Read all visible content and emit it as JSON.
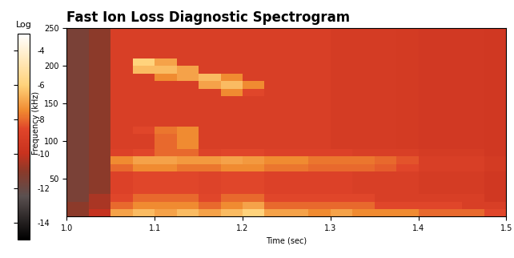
{
  "chart_data": {
    "type": "heatmap",
    "title": "Fast Ion Loss Diagnostic Spectrogram",
    "x_label": "Time (sec)",
    "y_label": "Frequency (kHz)",
    "xlim": [
      1.0,
      1.5
    ],
    "ylim": [
      0,
      250
    ],
    "xticks": [
      1.0,
      1.1,
      1.2,
      1.3,
      1.4,
      1.5
    ],
    "yticks": [
      50,
      100,
      150,
      200,
      250
    ],
    "cells": [
      [
        -11,
        -10,
        -7,
        -6.5,
        -7,
        -6.5,
        -7,
        -6.5,
        -6,
        -7,
        -7,
        -7.5,
        -7,
        -7.5,
        -7.5,
        -7.5,
        -8,
        -8,
        -8,
        -8.5
      ],
      [
        -11,
        -10.5,
        -8,
        -7.5,
        -7.5,
        -7.5,
        -8,
        -7.5,
        -7,
        -8,
        -8,
        -8,
        -8,
        -8,
        -8.5,
        -8.5,
        -8.5,
        -8.5,
        -9,
        -9
      ],
      [
        -11.5,
        -10.5,
        -8.5,
        -8,
        -8,
        -8,
        -8.5,
        -8,
        -8,
        -8.5,
        -8.5,
        -8.5,
        -8.5,
        -8.5,
        -9,
        -9,
        -9,
        -9,
        -9,
        -9.5
      ],
      [
        -11.5,
        -11,
        -8.8,
        -8.5,
        -8.5,
        -8.5,
        -8.7,
        -8.5,
        -8.5,
        -8.8,
        -8.8,
        -8.8,
        -8.8,
        -9,
        -9,
        -9,
        -9.2,
        -9.2,
        -9.2,
        -9.5
      ],
      [
        -11.5,
        -11,
        -8.8,
        -8.5,
        -8.5,
        -8.5,
        -8.7,
        -8.5,
        -8.5,
        -8.8,
        -8.8,
        -8.8,
        -8.8,
        -9,
        -9,
        -9,
        -9.2,
        -9.2,
        -9.2,
        -9.5
      ],
      [
        -11.5,
        -11,
        -8.8,
        -8.5,
        -8.5,
        -8.5,
        -8.7,
        -8.5,
        -8.5,
        -8.8,
        -8.8,
        -8.8,
        -8.8,
        -9,
        -9,
        -9,
        -9.2,
        -9.2,
        -9.2,
        -9.5
      ],
      [
        -11.5,
        -11,
        -8,
        -7.5,
        -7.5,
        -7.8,
        -7.8,
        -7.5,
        -7.5,
        -7.8,
        -7.8,
        -8,
        -8,
        -8,
        -8.2,
        -8.5,
        -9,
        -9,
        -9,
        -9.3
      ],
      [
        -11.5,
        -11,
        -7.5,
        -7,
        -7,
        -7.2,
        -7.2,
        -7,
        -7.2,
        -7.5,
        -7.5,
        -7.8,
        -7.8,
        -7.8,
        -8,
        -8.3,
        -9,
        -9,
        -9,
        -9.3
      ],
      [
        -11.5,
        -11,
        -8.8,
        -8.5,
        -8,
        -8,
        -8.7,
        -8.5,
        -8.5,
        -8.8,
        -8.8,
        -8.8,
        -8.8,
        -9,
        -9,
        -9,
        -9.2,
        -9.2,
        -9.2,
        -9.5
      ],
      [
        -11.5,
        -11,
        -9,
        -9,
        -8,
        -7.5,
        -9,
        -9,
        -9,
        -9,
        -9,
        -9,
        -9.2,
        -9.2,
        -9.2,
        -9.3,
        -9.4,
        -9.4,
        -9.4,
        -9.5
      ],
      [
        -11.5,
        -11,
        -9,
        -9,
        -8,
        -7.5,
        -9,
        -9,
        -9,
        -9,
        -9,
        -9,
        -9.2,
        -9.2,
        -9.2,
        -9.3,
        -9.4,
        -9.4,
        -9.4,
        -9.5
      ],
      [
        -11.5,
        -11,
        -9,
        -8.5,
        -7.8,
        -7.5,
        -9,
        -9,
        -9,
        -9,
        -9,
        -9,
        -9.2,
        -9.2,
        -9.2,
        -9.3,
        -9.4,
        -9.4,
        -9.4,
        -9.5
      ],
      [
        -11.5,
        -11,
        -9,
        -9,
        -9,
        -9,
        -9,
        -9,
        -9,
        -9,
        -9,
        -9,
        -9.2,
        -9.2,
        -9.2,
        -9.3,
        -9.4,
        -9.4,
        -9.4,
        -9.5
      ],
      [
        -11.5,
        -11,
        -9,
        -9,
        -9,
        -9,
        -9,
        -9,
        -9,
        -9,
        -9,
        -9,
        -9.2,
        -9.2,
        -9.2,
        -9.3,
        -9.4,
        -9.4,
        -9.4,
        -9.5
      ],
      [
        -11.5,
        -11,
        -9,
        -9,
        -9,
        -9,
        -9,
        -9,
        -9,
        -9,
        -9,
        -9,
        -9.2,
        -9.2,
        -9.2,
        -9.3,
        -9.4,
        -9.4,
        -9.4,
        -9.5
      ],
      [
        -11.5,
        -11,
        -9,
        -9,
        -9,
        -9,
        -9,
        -9,
        -9,
        -9,
        -9,
        -9,
        -9.2,
        -9.2,
        -9.2,
        -9.3,
        -9.4,
        -9.4,
        -9.4,
        -9.5
      ],
      [
        -11.5,
        -11,
        -9,
        -9,
        -9,
        -9,
        -9,
        -7.5,
        -8.5,
        -9,
        -9,
        -9,
        -9.2,
        -9.2,
        -9.2,
        -9.3,
        -9.4,
        -9.4,
        -9.4,
        -9.5
      ],
      [
        -11.5,
        -11,
        -9,
        -9,
        -9,
        -9,
        -7,
        -6.5,
        -7.5,
        -9,
        -9,
        -9,
        -9.2,
        -9.2,
        -9.2,
        -9.3,
        -9.4,
        -9.4,
        -9.4,
        -9.5
      ],
      [
        -11.5,
        -11,
        -9,
        -9,
        -7.5,
        -7,
        -6.5,
        -7.5,
        -9,
        -9,
        -9,
        -9,
        -9.2,
        -9.2,
        -9.2,
        -9.3,
        -9.4,
        -9.4,
        -9.4,
        -9.5
      ],
      [
        -11.5,
        -11,
        -9,
        -6.5,
        -6.5,
        -7,
        -9,
        -9,
        -9,
        -9,
        -9,
        -9,
        -9.2,
        -9.2,
        -9.2,
        -9.3,
        -9.4,
        -9.4,
        -9.4,
        -9.5
      ],
      [
        -11.5,
        -11,
        -9,
        -6,
        -7,
        -9,
        -9,
        -9,
        -9,
        -9,
        -9,
        -9,
        -9.2,
        -9.2,
        -9.2,
        -9.3,
        -9.4,
        -9.4,
        -9.4,
        -9.5
      ],
      [
        -11.5,
        -11,
        -9,
        -9,
        -9,
        -9,
        -9,
        -9,
        -9,
        -9,
        -9,
        -9,
        -9.2,
        -9.2,
        -9.2,
        -9.3,
        -9.4,
        -9.4,
        -9.4,
        -9.5
      ],
      [
        -11.5,
        -11,
        -9,
        -9,
        -9,
        -9,
        -9,
        -9,
        -9,
        -9,
        -9,
        -9,
        -9.2,
        -9.2,
        -9.2,
        -9.3,
        -9.4,
        -9.4,
        -9.4,
        -9.5
      ],
      [
        -11.5,
        -11,
        -9,
        -9,
        -9,
        -9,
        -9,
        -9,
        -9,
        -9,
        -9,
        -9,
        -9.2,
        -9.2,
        -9.2,
        -9.3,
        -9.4,
        -9.4,
        -9.4,
        -9.5
      ],
      [
        -11.5,
        -11,
        -9,
        -9,
        -9,
        -9,
        -9,
        -9,
        -9,
        -9,
        -9,
        -9,
        -9.2,
        -9.2,
        -9.2,
        -9.3,
        -9.4,
        -9.4,
        -9.4,
        -9.5
      ]
    ],
    "colorbar": {
      "label": "Log",
      "range": [
        -15,
        -3
      ],
      "ticks": [
        -4,
        -6,
        -8,
        -10,
        -12,
        -14
      ]
    }
  }
}
